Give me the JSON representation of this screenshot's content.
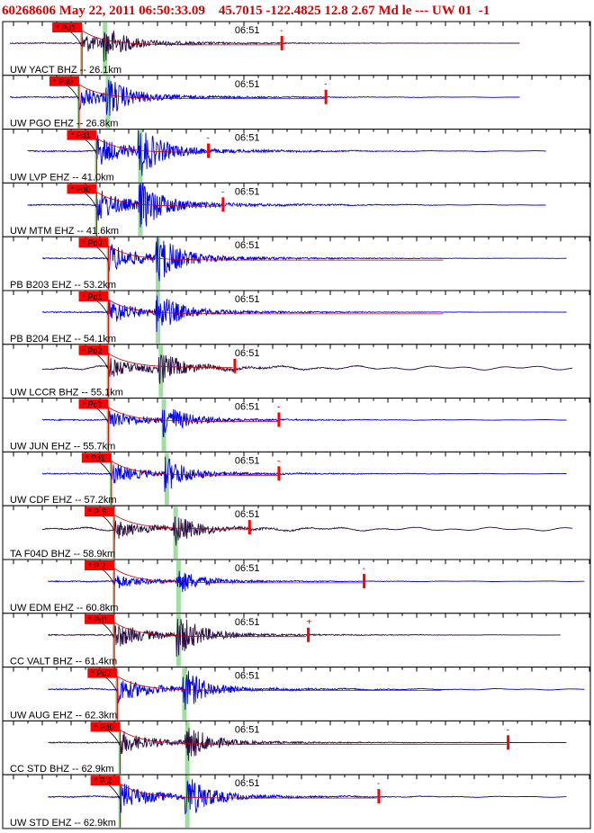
{
  "header": {
    "event_id": "60268606",
    "datetime": "May 22, 2011 06:50:33.09",
    "lat": "45.7015",
    "lon": "-122.4825",
    "depth": "12.8",
    "magnitude": "2.67",
    "mag_type": "Md",
    "type": "le",
    "sep": "---",
    "network": "UW",
    "version": "01",
    "extra": "-1"
  },
  "colors": {
    "background": "#ffffff",
    "header_text": "#d80000",
    "pick_box": "#ff0000",
    "coda_line": "#c00000",
    "theoretical_s": "#90d890",
    "blue_trace": "#0000e8",
    "dark_trace": "#2a0f45",
    "frame": "#000000"
  },
  "chart_data": {
    "type": "line",
    "description_time_label": "06:51",
    "traces": [
      {
        "label": "UW YACT BHZ -- 26.1km",
        "pick": "Pd1",
        "color": "dark",
        "p": 0.135,
        "s": 0.175,
        "coda": 0.475,
        "coda_mark": "-",
        "amp": 0.55,
        "noise": 0.005,
        "len": 0.88,
        "start": 0.0
      },
      {
        "label": "UW PGO EHZ -- 26.8km",
        "pick": "Pd0",
        "color": "blue",
        "p": 0.13,
        "s": 0.18,
        "coda": 0.55,
        "coda_mark": "-",
        "amp": 0.65,
        "noise": 0.02,
        "len": 0.88,
        "start": 0.0
      },
      {
        "label": "UW LVP EHZ -- 41.0km",
        "pick": "Pd1",
        "color": "blue",
        "p": 0.16,
        "s": 0.235,
        "coda": 0.35,
        "coda_mark": "-",
        "amp": 0.85,
        "noise": 0.03,
        "len": 0.925,
        "start": 0.03
      },
      {
        "label": "UW MTM EHZ -- 41.6km",
        "pick": "Pd0",
        "color": "blue",
        "p": 0.16,
        "s": 0.235,
        "coda": 0.375,
        "coda_mark": "-",
        "amp": 0.9,
        "noise": 0.03,
        "len": 0.925,
        "start": 0.03
      },
      {
        "label": "PB B203 EHZ -- 53.2km",
        "pick": "Pd0",
        "color": "blue",
        "p": 0.18,
        "s": 0.265,
        "coda": null,
        "coda_mark": "",
        "amp": 0.85,
        "noise": 0.005,
        "len": 0.96,
        "start": 0.055
      },
      {
        "label": "PB B204 EHZ -- 54.1km",
        "pick": "Pd1",
        "color": "blue",
        "p": 0.18,
        "s": 0.265,
        "coda": null,
        "coda_mark": "",
        "amp": 0.7,
        "noise": 0.005,
        "len": 0.96,
        "start": 0.055
      },
      {
        "label": "UW LCCR BHZ -- 55.1km",
        "pick": "Pd2",
        "color": "dark",
        "p": 0.18,
        "s": 0.27,
        "coda": 0.395,
        "coda_mark": "",
        "amp": 0.55,
        "noise": 0.16,
        "len": 0.97,
        "start": 0.055
      },
      {
        "label": "UW JUN EHZ -- 55.7km",
        "pick": "Pc3",
        "color": "blue",
        "p": 0.18,
        "s": 0.275,
        "coda": 0.47,
        "coda_mark": "-",
        "amp": 0.6,
        "noise": 0.02,
        "len": 0.96,
        "start": 0.055
      },
      {
        "label": "UW CDF EHZ -- 57.2km",
        "pick": "Pd1",
        "color": "blue",
        "p": 0.185,
        "s": 0.28,
        "coda": 0.47,
        "coda_mark": "-",
        "amp": 0.6,
        "noise": 0.02,
        "len": 0.96,
        "start": 0.055
      },
      {
        "label": "TA F04D BHZ -- 58.9km",
        "pick": "P S",
        "color": "dark",
        "p": 0.19,
        "s": 0.295,
        "coda": 0.42,
        "coda_mark": "",
        "amp": 0.55,
        "noise": 0.14,
        "len": 0.97,
        "start": 0.055
      },
      {
        "label": "UW EDM EHZ -- 60.8km",
        "pick": "P 2",
        "color": "blue",
        "p": 0.19,
        "s": 0.3,
        "coda": 0.615,
        "coda_mark": "-",
        "amp": 0.45,
        "noise": 0.02,
        "len": 1.0,
        "start": 0.065
      },
      {
        "label": "CC VALT BHZ -- 61.4km",
        "pick": "Pd1",
        "color": "dark",
        "p": 0.19,
        "s": 0.3,
        "coda": 0.52,
        "coda_mark": "+",
        "amp": 0.75,
        "noise": 0.01,
        "len": 0.95,
        "start": 0.065
      },
      {
        "label": "UW AUG EHZ -- 62.3km",
        "pick": "Pd2",
        "color": "blue",
        "p": 0.195,
        "s": 0.31,
        "coda": null,
        "coda_mark": "",
        "amp": 0.75,
        "noise": 0.05,
        "len": 1.0,
        "start": 0.065
      },
      {
        "label": "CC STD BHZ -- 62.9km",
        "pick": "Pd0",
        "color": "dark",
        "p": 0.2,
        "s": 0.315,
        "coda": 0.86,
        "coda_mark": "-",
        "amp": 0.65,
        "noise": 0.01,
        "len": 0.96,
        "start": 0.065
      },
      {
        "label": "UW STD EHZ -- 62.9km",
        "pick": "P 2",
        "color": "blue",
        "p": 0.2,
        "s": 0.315,
        "coda": 0.64,
        "coda_mark": "-",
        "amp": 0.8,
        "noise": 0.04,
        "len": 0.96,
        "start": 0.065
      }
    ],
    "theoretical_s_times": [
      0.175,
      0.18,
      0.235,
      0.235,
      0.265,
      0.265,
      0.27,
      0.275,
      0.28,
      0.295,
      0.3,
      0.3,
      0.31,
      0.315,
      0.315
    ]
  }
}
